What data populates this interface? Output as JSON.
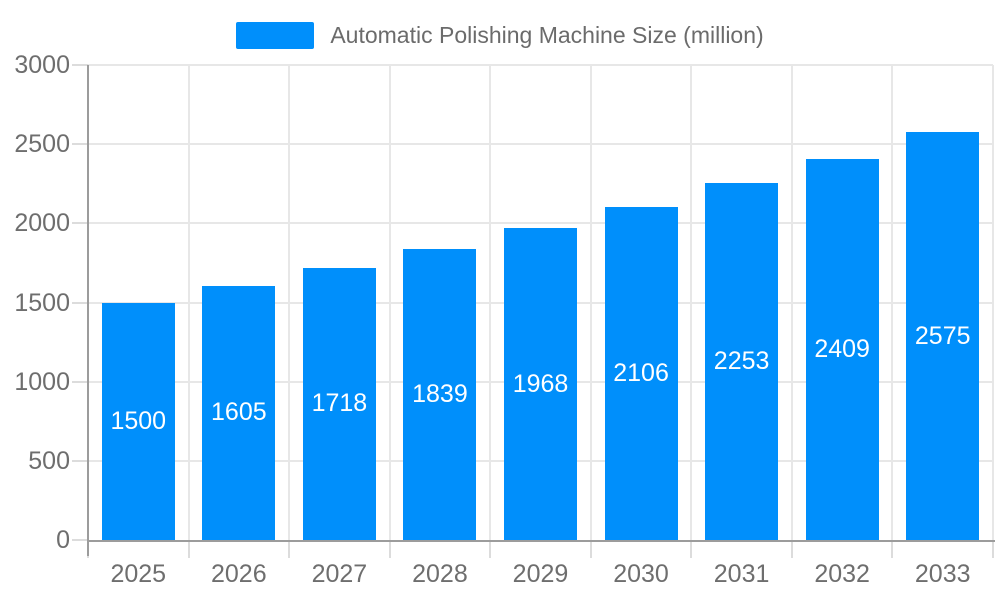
{
  "chart_data": {
    "type": "bar",
    "title": "Automatic Polishing Machine Size (million)",
    "categories": [
      "2025",
      "2026",
      "2027",
      "2028",
      "2029",
      "2030",
      "2031",
      "2032",
      "2033"
    ],
    "series": [
      {
        "name": "Automatic Polishing Machine Size (million)",
        "values": [
          1500,
          1605,
          1718,
          1839,
          1968,
          2106,
          2253,
          2409,
          2575
        ]
      }
    ],
    "xlabel": "",
    "ylabel": "",
    "ylim": [
      0,
      3000
    ],
    "yticks": [
      0,
      500,
      1000,
      1500,
      2000,
      2500,
      3000
    ],
    "grid": true,
    "legend_position": "top",
    "value_labels": "inside-center",
    "colors": {
      "bar": "#008FFB",
      "value_label_text": "#ffffff",
      "axis_text": "#6e6e6e",
      "gridline": "#e7e7e7",
      "tick": "#dcdcdc",
      "axis_line": "#9c9c9c",
      "background": "#ffffff"
    }
  }
}
